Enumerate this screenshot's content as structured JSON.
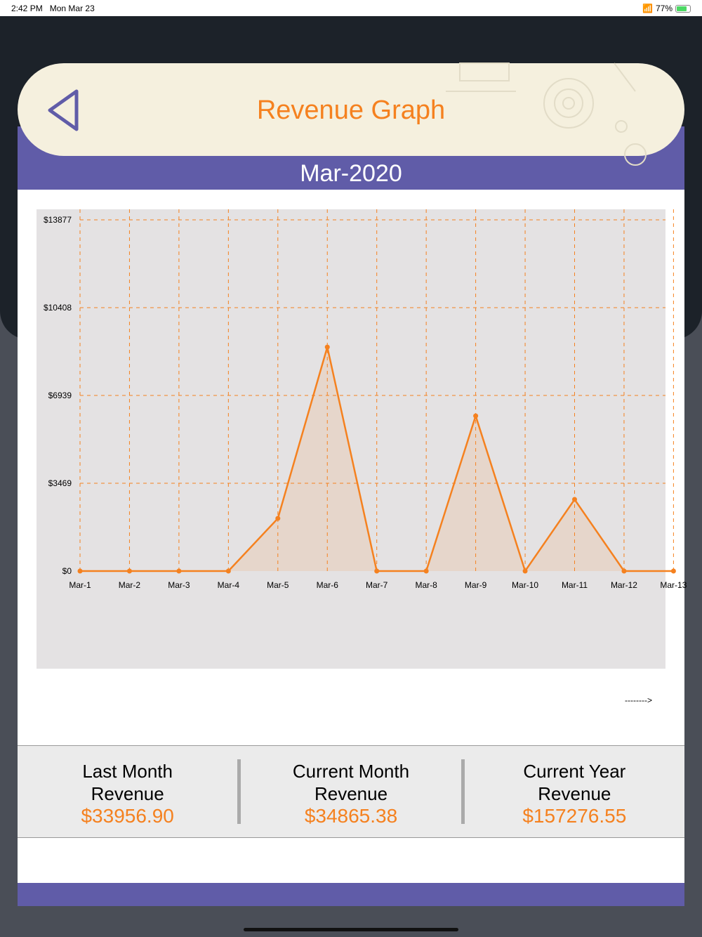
{
  "status_bar": {
    "time": "2:42 PM",
    "date": "Mon Mar 23",
    "battery": "77%"
  },
  "header": {
    "title": "Revenue Graph",
    "back_icon": "back-triangle-icon"
  },
  "month_label": "Mar-2020",
  "scroll_hint": "-------->",
  "colors": {
    "accent": "#f5811f",
    "purple": "#605ca8",
    "header_bg": "#f5f0de"
  },
  "chart_data": {
    "type": "area",
    "categories": [
      "Mar-1",
      "Mar-2",
      "Mar-3",
      "Mar-4",
      "Mar-5",
      "Mar-6",
      "Mar-7",
      "Mar-8",
      "Mar-9",
      "Mar-10",
      "Mar-11",
      "Mar-12",
      "Mar-13"
    ],
    "values": [
      0,
      0,
      0,
      0,
      2080,
      8850,
      0,
      0,
      6130,
      0,
      2830,
      0,
      0
    ],
    "yticks": [
      "$0",
      "$3469",
      "$6939",
      "$10408",
      "$13877"
    ],
    "ytick_values": [
      0,
      3469,
      6939,
      10408,
      13877
    ],
    "ylim": [
      0,
      13877
    ],
    "grid": true,
    "xlabel": "",
    "ylabel": ""
  },
  "stats": [
    {
      "label1": "Last Month",
      "label2": "Revenue",
      "value": "$33956.90"
    },
    {
      "label1": "Current Month",
      "label2": "Revenue",
      "value": "$34865.38"
    },
    {
      "label1": "Current Year",
      "label2": "Revenue",
      "value": "$157276.55"
    }
  ]
}
